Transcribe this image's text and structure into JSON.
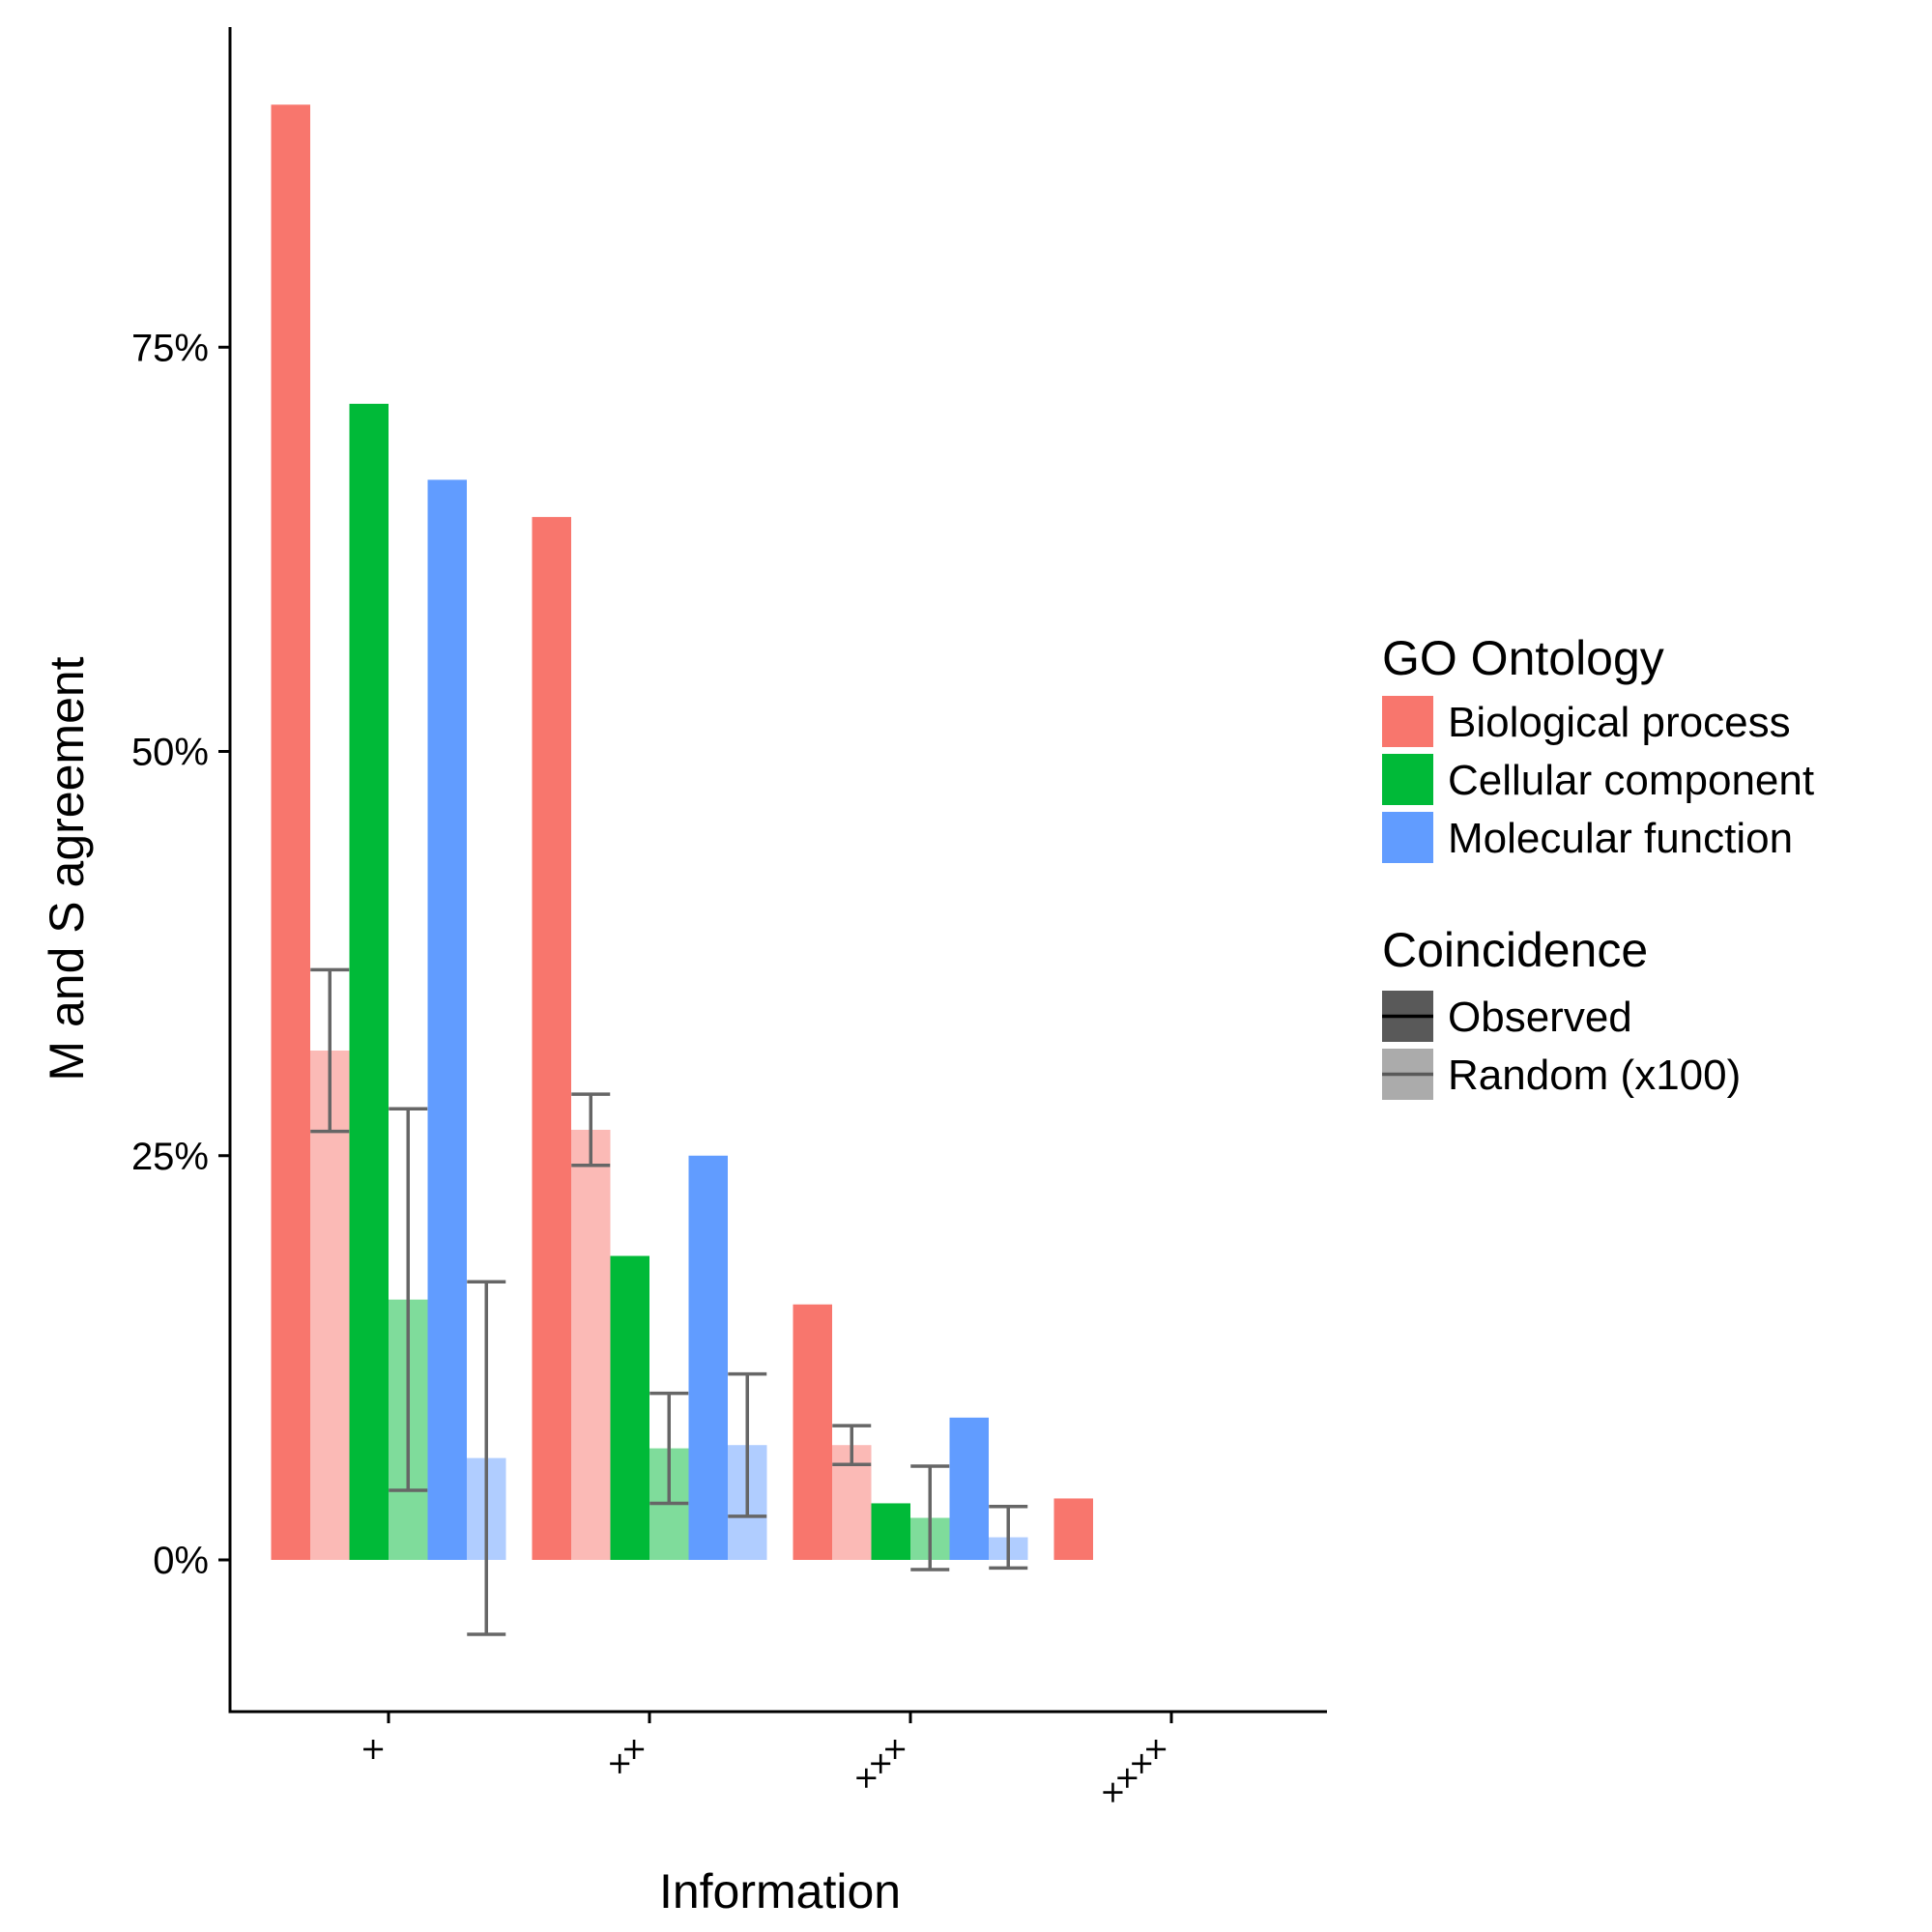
{
  "chart_data": {
    "type": "bar",
    "title": "",
    "xlabel": "Information",
    "ylabel": "M and S agreement",
    "ylim": [
      -9.5,
      95
    ],
    "y_ticks": [
      0,
      25,
      50,
      75
    ],
    "y_tick_labels": [
      "0%",
      "25%",
      "50%",
      "75%"
    ],
    "categories": [
      "×",
      "××",
      "×××",
      "××××"
    ],
    "grid": false,
    "legend_position": "right",
    "series": [
      {
        "name": "Biological process",
        "coincidence": "Observed",
        "color": "#F8766D",
        "alpha": 1.0,
        "values": [
          90,
          64.5,
          15.8,
          3.8
        ],
        "error_low": [
          null,
          null,
          null,
          null
        ],
        "error_high": [
          null,
          null,
          null,
          null
        ]
      },
      {
        "name": "Biological process",
        "coincidence": "Random (x100)",
        "color": "#F8766D",
        "alpha": 0.5,
        "values": [
          31.5,
          26.6,
          7.1,
          null
        ],
        "error_low": [
          26.5,
          24.4,
          5.9,
          null
        ],
        "error_high": [
          36.5,
          28.8,
          8.3,
          null
        ]
      },
      {
        "name": "Cellular component",
        "coincidence": "Observed",
        "color": "#00BA38",
        "alpha": 1.0,
        "values": [
          71.5,
          18.8,
          3.5,
          null
        ],
        "error_low": [
          null,
          null,
          null,
          null
        ],
        "error_high": [
          null,
          null,
          null,
          null
        ]
      },
      {
        "name": "Cellular component",
        "coincidence": "Random (x100)",
        "color": "#00BA38",
        "alpha": 0.5,
        "values": [
          16.1,
          6.9,
          2.6,
          null
        ],
        "error_low": [
          4.3,
          3.5,
          -0.6,
          null
        ],
        "error_high": [
          27.9,
          10.3,
          5.8,
          null
        ]
      },
      {
        "name": "Molecular function",
        "coincidence": "Observed",
        "color": "#619CFF",
        "alpha": 1.0,
        "values": [
          66.8,
          25.0,
          8.8,
          null
        ],
        "error_low": [
          null,
          null,
          null,
          null
        ],
        "error_high": [
          null,
          null,
          null,
          null
        ]
      },
      {
        "name": "Molecular function",
        "coincidence": "Random (x100)",
        "color": "#619CFF",
        "alpha": 0.5,
        "values": [
          6.3,
          7.1,
          1.4,
          null
        ],
        "error_low": [
          -4.6,
          2.7,
          -0.5,
          null
        ],
        "error_high": [
          17.2,
          11.5,
          3.3,
          null
        ]
      }
    ]
  },
  "legend": {
    "ontology_title": "GO Ontology",
    "ontology_items": [
      {
        "label": "Biological process",
        "color": "#F8766D"
      },
      {
        "label": "Cellular component",
        "color": "#00BA38"
      },
      {
        "label": "Molecular function",
        "color": "#619CFF"
      }
    ],
    "coincidence_title": "Coincidence",
    "coincidence_items": [
      {
        "label": "Observed",
        "fill": "#595959"
      },
      {
        "label": "Random (x100)",
        "fill": "#ababab"
      }
    ]
  }
}
